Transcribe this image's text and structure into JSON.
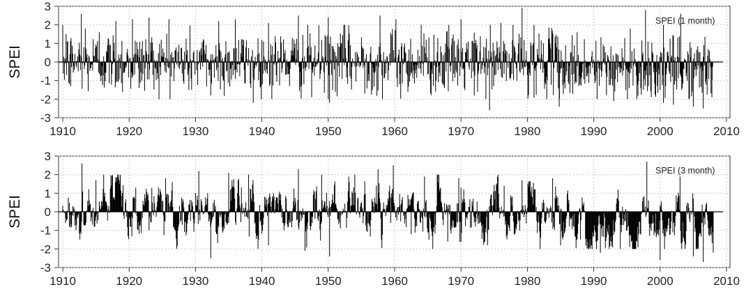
{
  "chart_data": [
    {
      "type": "bar",
      "annotation": "SPEI (1 month)",
      "ylabel": "SPEI",
      "xlabel": "",
      "xlim": [
        1910,
        2010
      ],
      "ylim": [
        -3,
        3
      ],
      "x_ticks": [
        "1910",
        "1920",
        "1930",
        "1940",
        "1950",
        "1960",
        "1970",
        "1980",
        "1990",
        "2000",
        "2010"
      ],
      "y_ticks": [
        "3",
        "2",
        "1",
        "0",
        "-1",
        "-2",
        "-3"
      ],
      "grid": true,
      "data_range": [
        1910,
        2008
      ],
      "series": [
        {
          "x": [
            1910.5,
            1911.2,
            1912.8,
            1913.4,
            1915.5,
            1918.0,
            1920.5,
            1921.5,
            1923.0,
            1926.0,
            1929.0,
            1932.3,
            1933.5,
            1936.0,
            1938.7,
            1941.0,
            1945.5,
            1947.5,
            1950.0,
            1950.2,
            1952.5,
            1955.5,
            1957.8,
            1960.2,
            1962.0,
            1964.0,
            1967.5,
            1970.0,
            1972.0,
            1974.3,
            1976.0,
            1979.2,
            1981.0,
            1984.8,
            1987.5,
            1990.5,
            1993.0,
            1995.5,
            1997.8,
            2000.5,
            2002.0,
            2003.1,
            2005.0,
            2006.5,
            2007.8
          ],
          "y": [
            1.5,
            -1.3,
            2.6,
            1.8,
            1.6,
            2.2,
            2.3,
            -1.4,
            2.4,
            2.3,
            -1.5,
            -1.8,
            2.2,
            2.3,
            -2.2,
            2.1,
            2.5,
            -1.9,
            2.4,
            -2.2,
            2.0,
            -1.7,
            2.5,
            2.3,
            -1.6,
            2.0,
            -1.4,
            2.3,
            -1.8,
            -2.6,
            2.1,
            2.9,
            2.0,
            -2.4,
            1.6,
            -2.0,
            -2.1,
            1.8,
            2.8,
            -2.2,
            -2.3,
            2.6,
            -2.4,
            -2.5,
            -1.9
          ]
        }
      ]
    },
    {
      "type": "bar",
      "annotation": "SPEI (3 month)",
      "ylabel": "SPEI",
      "xlabel": "",
      "xlim": [
        1910,
        2010
      ],
      "ylim": [
        -3,
        3
      ],
      "x_ticks": [
        "1910",
        "1920",
        "1930",
        "1940",
        "1950",
        "1960",
        "1970",
        "1980",
        "1990",
        "2000",
        "2010"
      ],
      "y_ticks": [
        "3",
        "2",
        "1",
        "0",
        "-1",
        "-2",
        "-3"
      ],
      "grid": true,
      "data_range": [
        1910,
        2008
      ],
      "series": [
        {
          "x": [
            1911.0,
            1912.9,
            1915.0,
            1918.5,
            1921.0,
            1923.0,
            1925.5,
            1928.0,
            1930.5,
            1932.3,
            1935.0,
            1938.0,
            1941.0,
            1945.5,
            1946.5,
            1949.0,
            1950.2,
            1954.0,
            1957.5,
            1959.8,
            1962.5,
            1964.5,
            1968.0,
            1970.0,
            1974.0,
            1976.5,
            1979.2,
            1982.0,
            1983.8,
            1985.0,
            1988.0,
            1991.0,
            1994.0,
            1998.0,
            2000.0,
            2003.0,
            2005.0,
            2006.5,
            2008.0
          ],
          "y": [
            -0.8,
            2.6,
            1.7,
            1.7,
            1.3,
            -1.0,
            1.8,
            -0.7,
            2.2,
            -2.5,
            2.1,
            2.0,
            -1.8,
            2.3,
            -2.1,
            2.0,
            -2.4,
            2.0,
            2.3,
            2.5,
            -1.2,
            1.9,
            -1.6,
            1.3,
            -1.8,
            1.4,
            1.7,
            -1.4,
            1.8,
            -1.8,
            -1.5,
            -2.2,
            -2.0,
            2.7,
            -2.6,
            1.9,
            -2.4,
            -2.7,
            -2.2
          ]
        }
      ]
    }
  ]
}
